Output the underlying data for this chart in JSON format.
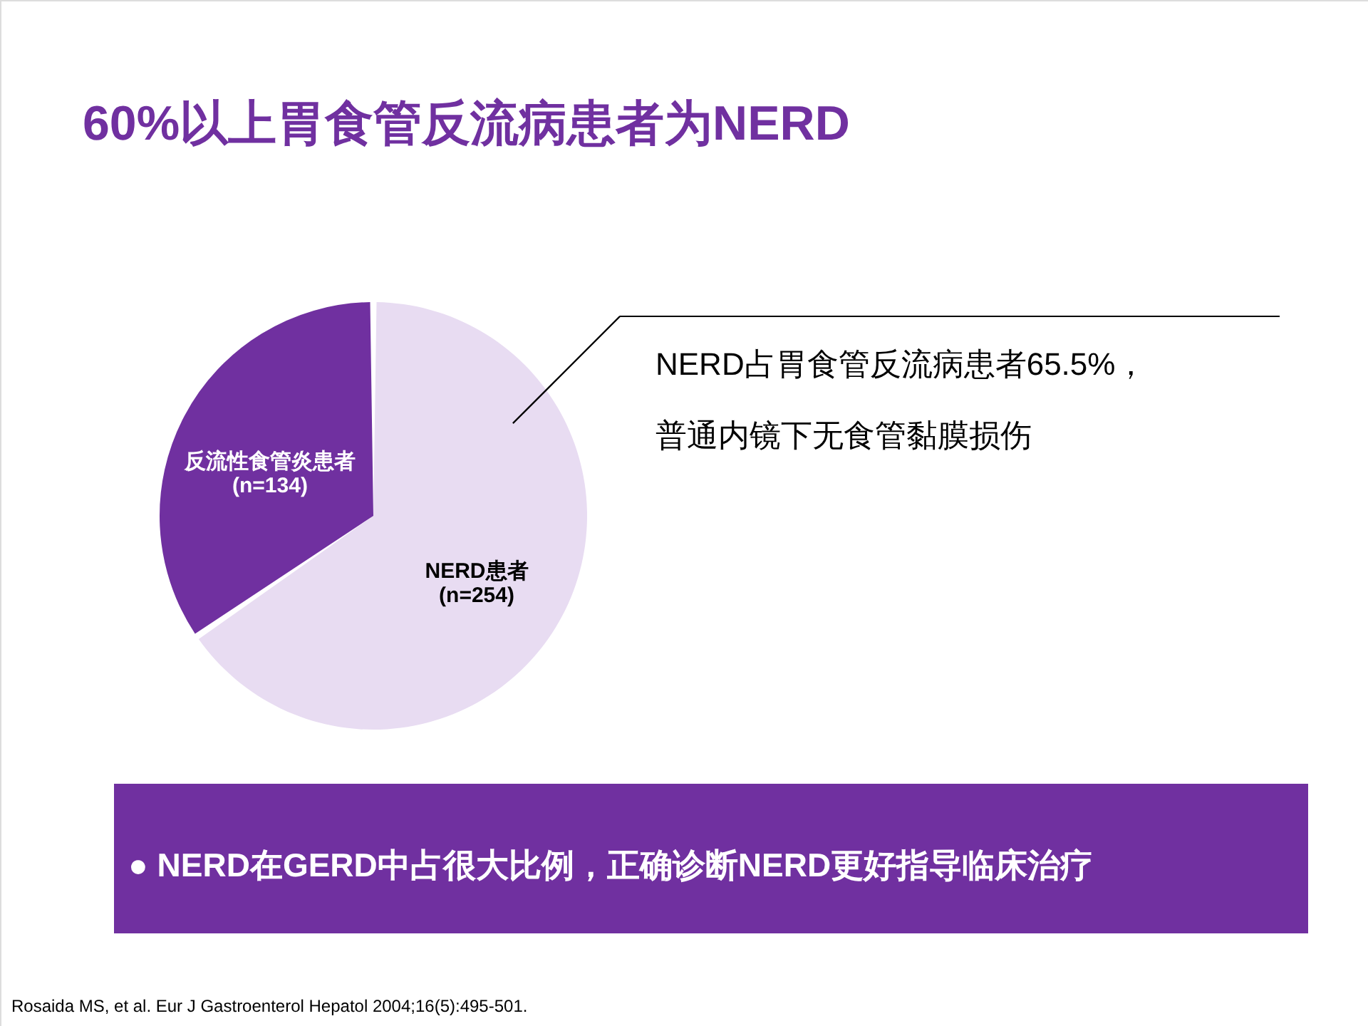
{
  "chart_data": {
    "type": "pie",
    "title": "60%以上胃食管反流病患者为NERD",
    "categories": [
      "NERD患者",
      "反流性食管炎患者"
    ],
    "values": [
      254,
      134
    ],
    "value_labels": [
      "(n=254)",
      "(n=134)"
    ],
    "colors": [
      "#e8dcf2",
      "#7030a0"
    ],
    "annotations": [
      "NERD占胃食管反流病患者65.5%，",
      "普通内镜下无食管黏膜损伤",
      "●  NERD在GERD中占很大比例，正确诊断NERD更好指导临床治疗",
      "Rosaida MS, et al. Eur J Gastroenterol Hepatol 2004;16(5):495-501."
    ]
  }
}
